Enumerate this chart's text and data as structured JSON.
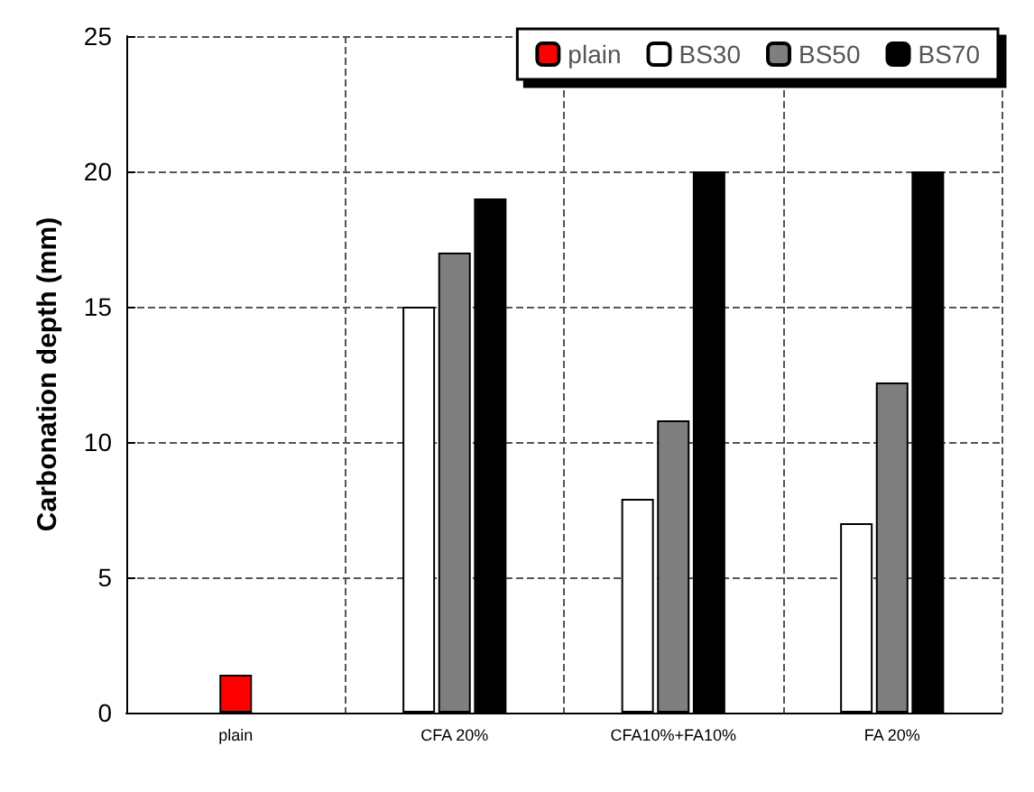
{
  "chart_data": {
    "type": "bar",
    "ylabel": "Carbonation depth (mm)",
    "categories": [
      "plain",
      "CFA 20%",
      "CFA10%+FA10%",
      "FA 20%"
    ],
    "series": [
      {
        "name": "plain",
        "color": "#ff0000",
        "values": [
          1.4,
          null,
          null,
          null
        ]
      },
      {
        "name": "BS30",
        "color": "#ffffff",
        "values": [
          null,
          15,
          7.9,
          7
        ]
      },
      {
        "name": "BS50",
        "color": "#7f7f7f",
        "values": [
          null,
          17,
          10.8,
          12.2
        ]
      },
      {
        "name": "BS70",
        "color": "#000000",
        "values": [
          null,
          19,
          20,
          20
        ]
      }
    ],
    "ylim": [
      0,
      25
    ],
    "yticks": [
      0,
      5,
      10,
      15,
      20,
      25
    ],
    "grid": true,
    "legend": "top right"
  }
}
